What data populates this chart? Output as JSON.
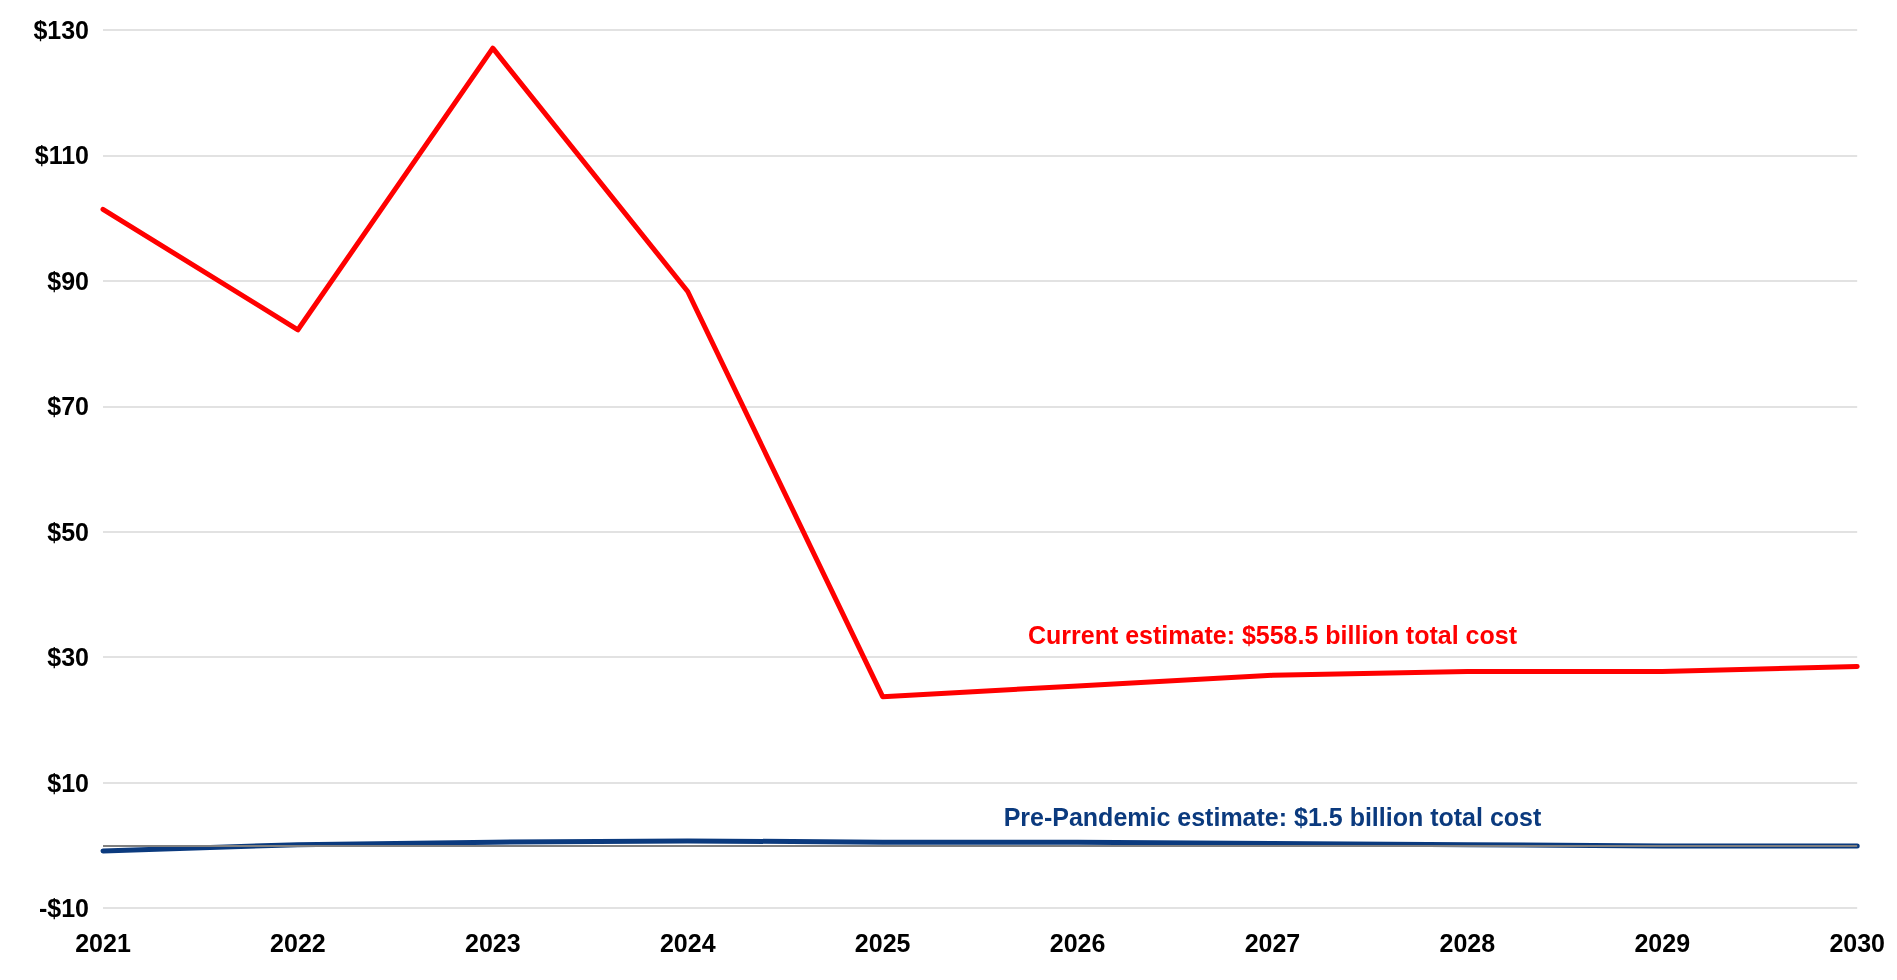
{
  "chart_data": {
    "type": "line",
    "categories": [
      "2021",
      "2022",
      "2023",
      "2024",
      "2025",
      "2026",
      "2027",
      "2028",
      "2029",
      "2030"
    ],
    "series": [
      {
        "name": "Current estimate: $558.5 billion total cost",
        "color": "#ff0000",
        "values": [
          101.4,
          82.2,
          127.1,
          88.3,
          23.7,
          25.4,
          27.1,
          27.7,
          27.7,
          28.5
        ]
      },
      {
        "name": "Pre-Pandemic estimate: $1.5 billion total cost",
        "color": "#0b3a7e",
        "values": [
          -0.9,
          0.1,
          0.5,
          0.7,
          0.5,
          0.5,
          0.3,
          0.1,
          -0.1,
          -0.1
        ]
      }
    ],
    "ylim": [
      -10,
      130
    ],
    "yticks": [
      {
        "value": -10,
        "label": "-$10"
      },
      {
        "value": 10,
        "label": "$10"
      },
      {
        "value": 30,
        "label": "$30"
      },
      {
        "value": 50,
        "label": "$50"
      },
      {
        "value": 70,
        "label": "$70"
      },
      {
        "value": 90,
        "label": "$90"
      },
      {
        "value": 110,
        "label": "$110"
      },
      {
        "value": 130,
        "label": "$130"
      }
    ],
    "grid": "y",
    "legend": false,
    "marker": "none",
    "line_style": "solid",
    "ref_lines": [
      {
        "axis": "y",
        "value": 0,
        "color": "#808080"
      }
    ]
  }
}
